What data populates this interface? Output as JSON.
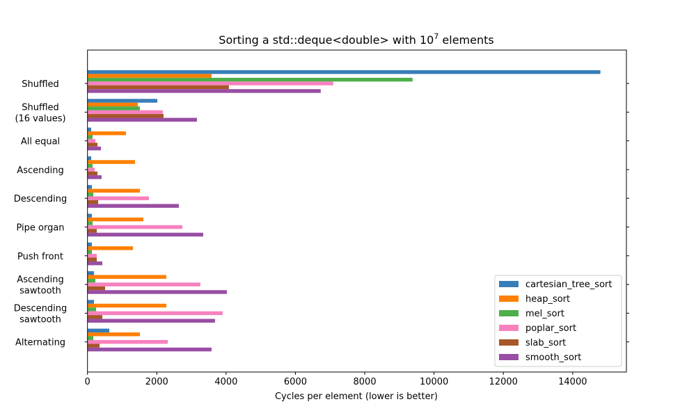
{
  "chart_data": {
    "type": "bar",
    "orientation": "horizontal",
    "title": "Sorting a std::deque<double> with 10",
    "title_superscript": "7",
    "title_suffix": " elements",
    "xlabel": "Cycles per element (lower is better)",
    "ylabel": "",
    "xlim": [
      0,
      15550
    ],
    "xticks": [
      0,
      2000,
      4000,
      6000,
      8000,
      10000,
      12000,
      14000
    ],
    "grid": false,
    "legend_placement": "lower-right",
    "categories": [
      [
        "Shuffled"
      ],
      [
        "Shuffled",
        "(16 values)"
      ],
      [
        "All equal"
      ],
      [
        "Ascending"
      ],
      [
        "Descending"
      ],
      [
        "Pipe organ"
      ],
      [
        "Push front"
      ],
      [
        "Ascending",
        "sawtooth"
      ],
      [
        "Descending",
        "sawtooth"
      ],
      [
        "Alternating"
      ]
    ],
    "series": [
      {
        "name": "cartesian_tree_sort",
        "color": "#377eb8",
        "values": [
          14800,
          2014,
          107,
          107,
          127,
          127,
          127,
          187,
          187,
          629
        ]
      },
      {
        "name": "heap_sort",
        "color": "#ff7f00",
        "values": [
          3580,
          1452,
          1110,
          1371,
          1512,
          1612,
          1311,
          2275,
          2275,
          1512
        ]
      },
      {
        "name": "mel_sort",
        "color": "#4daf4a",
        "values": [
          9380,
          1512,
          147,
          147,
          167,
          147,
          127,
          227,
          248,
          167
        ]
      },
      {
        "name": "poplar_sort",
        "color": "#f781bf",
        "values": [
          7090,
          2174,
          227,
          207,
          1773,
          2736,
          268,
          3258,
          3900,
          2315
        ]
      },
      {
        "name": "slab_sort",
        "color": "#a65628",
        "values": [
          4080,
          2194,
          288,
          288,
          308,
          268,
          268,
          508,
          428,
          348
        ]
      },
      {
        "name": "smooth_sort",
        "color": "#984ea3",
        "values": [
          6730,
          3158,
          388,
          408,
          2636,
          3338,
          428,
          4021,
          3680,
          3579
        ]
      }
    ]
  }
}
